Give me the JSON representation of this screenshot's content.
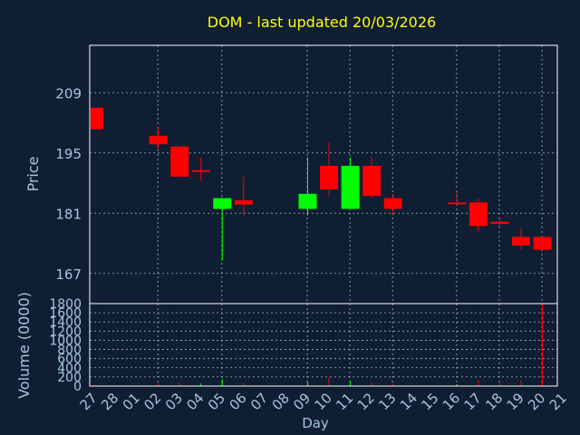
{
  "title": "DOM - last updated 20/03/2026",
  "colors": {
    "background": "#0f1e32",
    "plot_border": "#ffffff",
    "grid": "#a9b4c0",
    "title": "#ffff00",
    "axis_text": "#a9c4df",
    "up": "#00ff00",
    "down": "#ff0000"
  },
  "chart_data": [
    {
      "type": "candlestick",
      "ylabel": "Price",
      "yticks": [
        167,
        181,
        195,
        209
      ],
      "ylim": [
        160,
        220
      ],
      "candles": [
        {
          "day": "27",
          "open": 205.5,
          "close": 200.5,
          "high": 205.5,
          "low": 200.5
        },
        {
          "day": "02",
          "open": 199.0,
          "close": 197.0,
          "high": 201.0,
          "low": 196.0
        },
        {
          "day": "03",
          "open": 196.5,
          "close": 189.5,
          "high": 196.5,
          "low": 189.5
        },
        {
          "day": "04",
          "open": 191.0,
          "close": 191.0,
          "high": 194.0,
          "low": 188.5
        },
        {
          "day": "05",
          "open": 182.0,
          "close": 184.5,
          "high": 184.5,
          "low": 170.0
        },
        {
          "day": "06",
          "open": 184.0,
          "close": 183.0,
          "high": 189.5,
          "low": 180.5
        },
        {
          "day": "09",
          "open": 182.0,
          "close": 185.5,
          "high": 194.0,
          "low": 180.5
        },
        {
          "day": "10",
          "open": 192.0,
          "close": 186.5,
          "high": 197.5,
          "low": 185.0
        },
        {
          "day": "11",
          "open": 182.0,
          "close": 192.0,
          "high": 194.0,
          "low": 182.0
        },
        {
          "day": "12",
          "open": 192.0,
          "close": 185.0,
          "high": 194.0,
          "low": 184.5
        },
        {
          "day": "13",
          "open": 184.5,
          "close": 182.0,
          "high": 185.5,
          "low": 180.5
        },
        {
          "day": "16",
          "open": 183.5,
          "close": 183.5,
          "high": 186.0,
          "low": 183.0
        },
        {
          "day": "17",
          "open": 183.5,
          "close": 178.0,
          "high": 184.5,
          "low": 176.5
        },
        {
          "day": "18",
          "open": 179.0,
          "close": 178.5,
          "high": 179.5,
          "low": 177.5
        },
        {
          "day": "19",
          "open": 175.5,
          "close": 173.5,
          "high": 177.5,
          "low": 172.5
        },
        {
          "day": "20",
          "open": 175.5,
          "close": 172.5,
          "high": 175.5,
          "low": 172.5
        }
      ]
    },
    {
      "type": "bar",
      "ylabel": "Volume (0000)",
      "xlabel": "Day",
      "yticks": [
        0,
        200,
        400,
        600,
        800,
        1000,
        1200,
        1400,
        1600,
        1800
      ],
      "ylim": [
        0,
        1800
      ],
      "x_tick_labels": [
        "27",
        "28",
        "01",
        "02",
        "03",
        "04",
        "05",
        "06",
        "07",
        "08",
        "09",
        "10",
        "11",
        "12",
        "13",
        "14",
        "15",
        "16",
        "17",
        "18",
        "19",
        "20",
        "21"
      ],
      "values": [
        {
          "day": "27",
          "volume": 30,
          "color": "down"
        },
        {
          "day": "02",
          "volume": 60,
          "color": "down"
        },
        {
          "day": "03",
          "volume": 80,
          "color": "down"
        },
        {
          "day": "04",
          "volume": 60,
          "color": "up"
        },
        {
          "day": "05",
          "volume": 150,
          "color": "up"
        },
        {
          "day": "06",
          "volume": 60,
          "color": "down"
        },
        {
          "day": "09",
          "volume": 100,
          "color": "up"
        },
        {
          "day": "10",
          "volume": 200,
          "color": "down"
        },
        {
          "day": "11",
          "volume": 120,
          "color": "up"
        },
        {
          "day": "12",
          "volume": 80,
          "color": "down"
        },
        {
          "day": "13",
          "volume": 60,
          "color": "down"
        },
        {
          "day": "16",
          "volume": 40,
          "color": "up"
        },
        {
          "day": "17",
          "volume": 130,
          "color": "down"
        },
        {
          "day": "18",
          "volume": 110,
          "color": "down"
        },
        {
          "day": "19",
          "volume": 130,
          "color": "down"
        },
        {
          "day": "20",
          "volume": 1780,
          "color": "down"
        }
      ]
    }
  ]
}
